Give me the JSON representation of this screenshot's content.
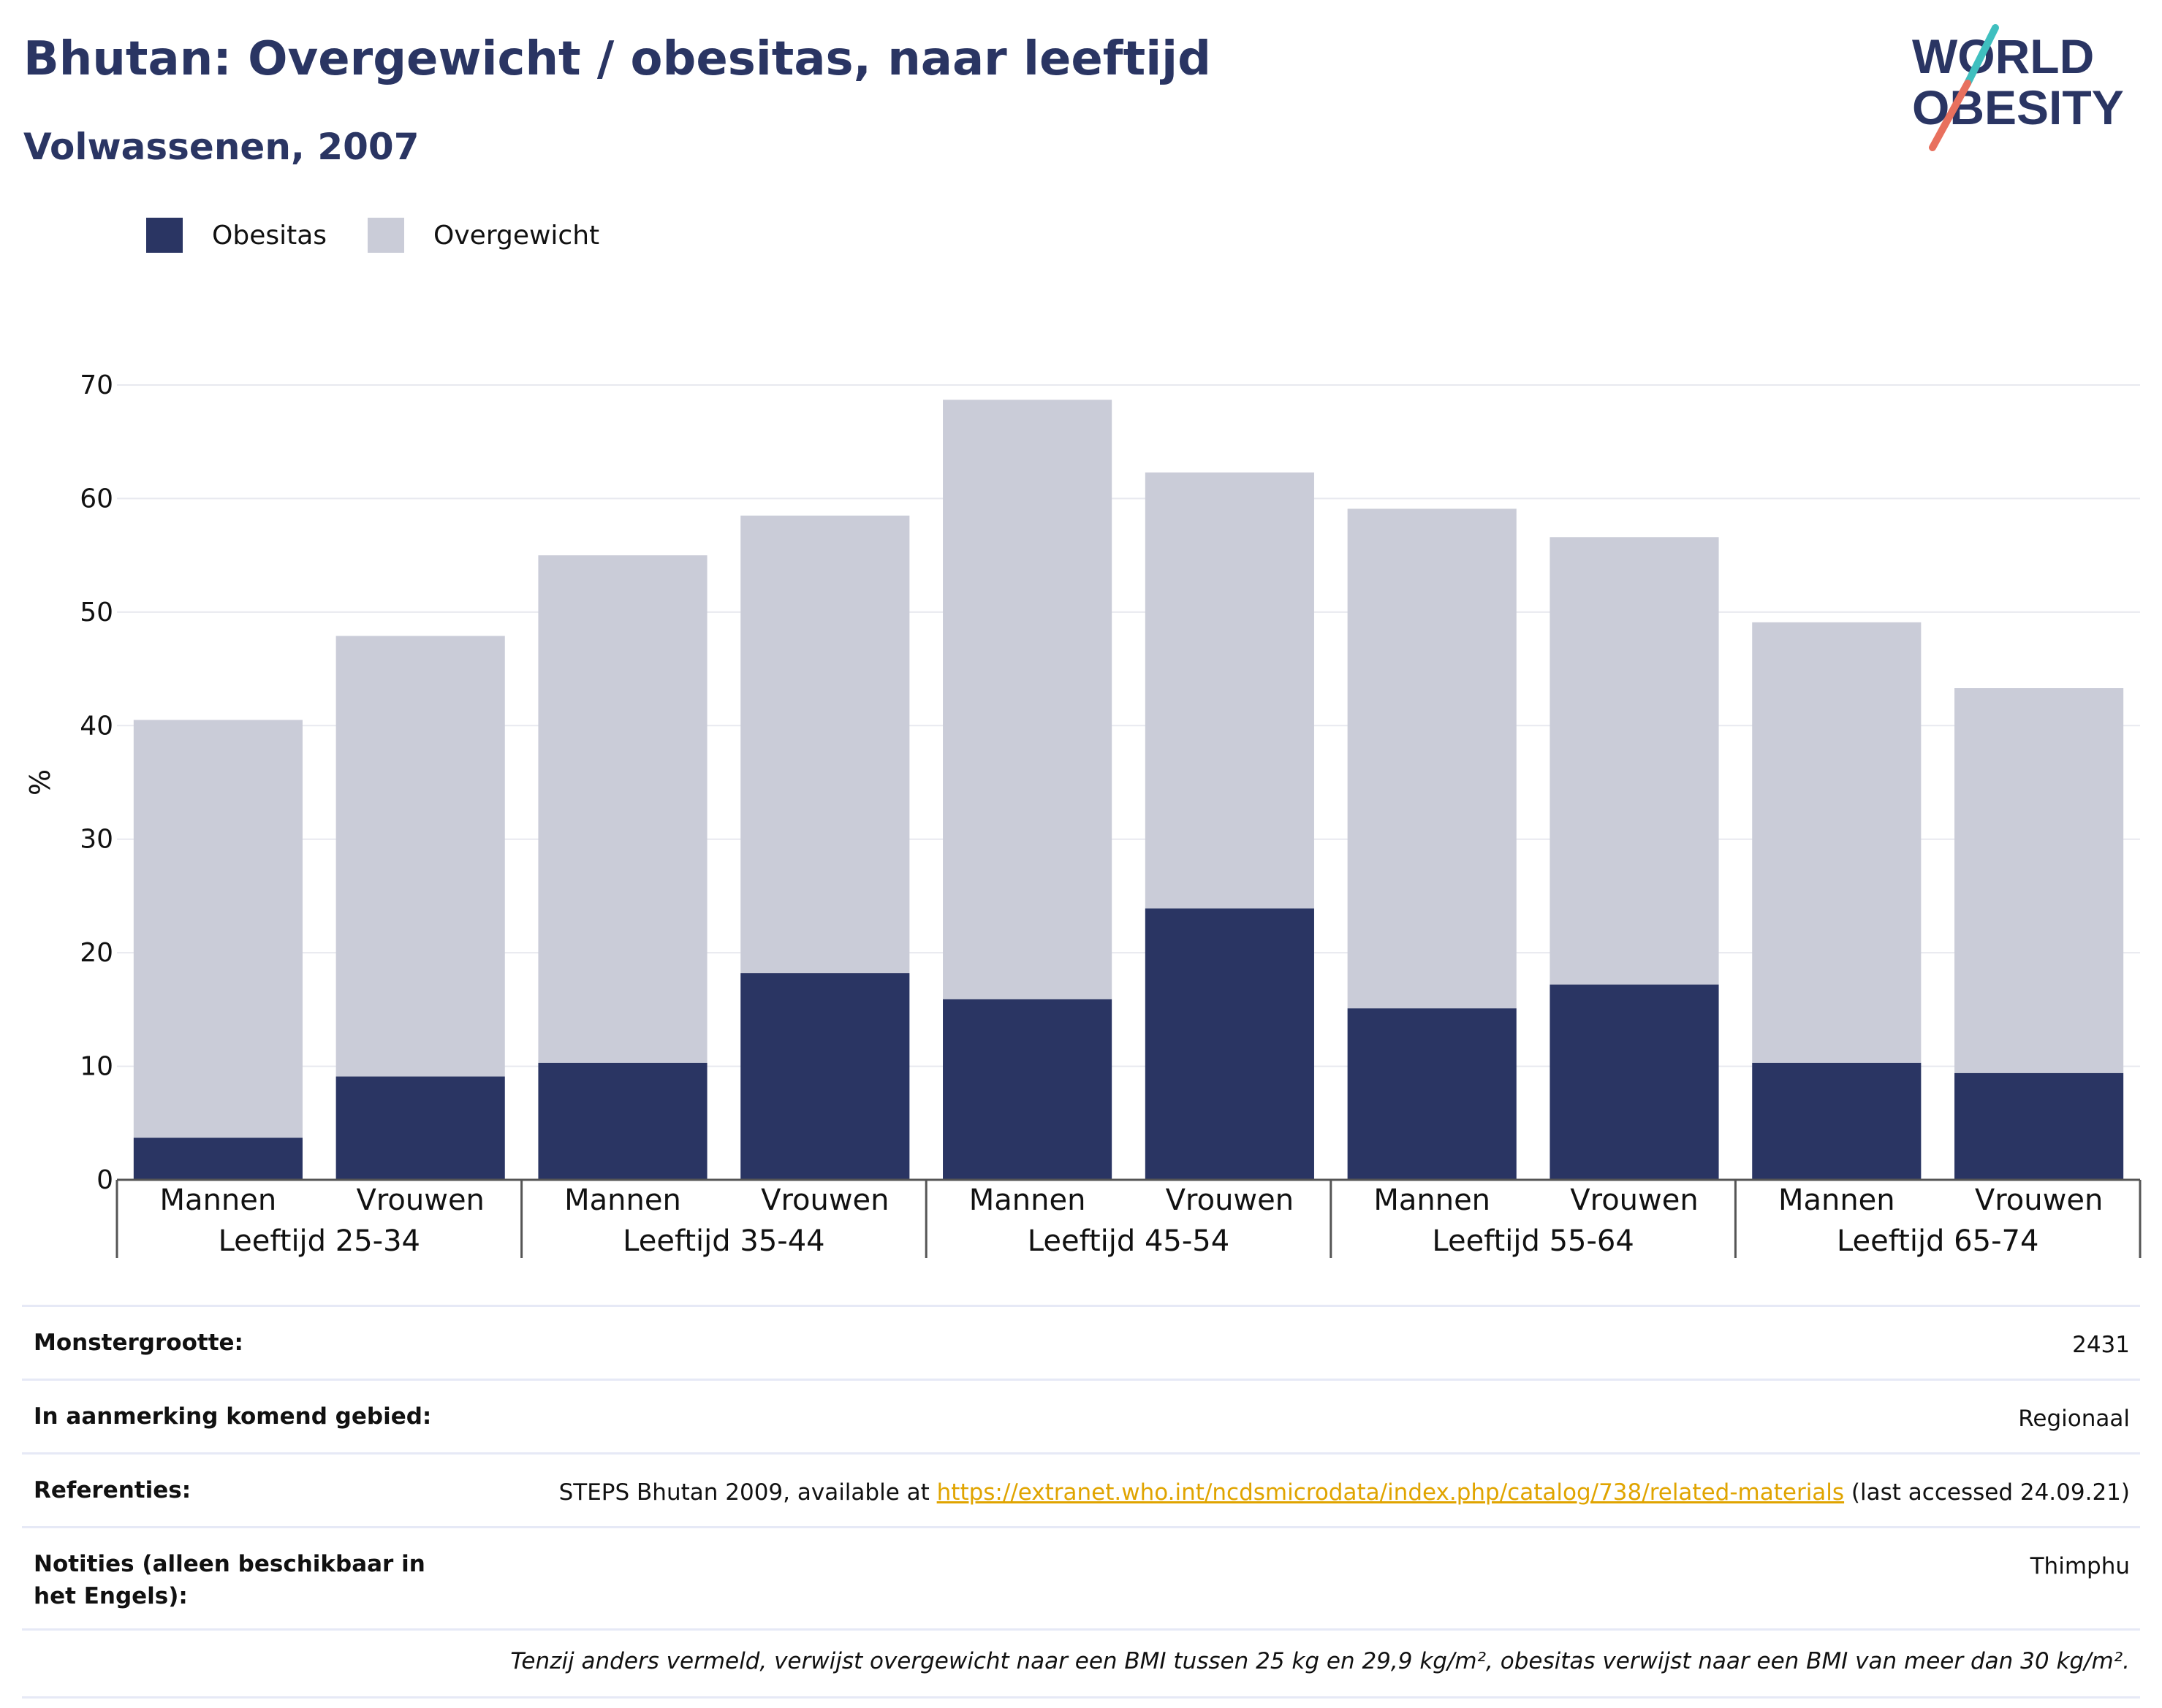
{
  "header": {
    "title": "Bhutan: Overgewicht / obesitas, naar leeftijd",
    "subtitle": "Volwassenen, 2007",
    "logo_line1": "WORLD",
    "logo_line2": "OBESITY"
  },
  "legend": {
    "obesity": "Obesitas",
    "overweight": "Overgewicht"
  },
  "colors": {
    "obesity": "#2a3563",
    "overweight": "#caccd8",
    "link": "#e0a400",
    "logo_teal": "#3fbfbf",
    "logo_coral": "#e8705e"
  },
  "chart_data": {
    "type": "bar",
    "stacked": true,
    "ylabel": "%",
    "ylim": [
      0,
      70
    ],
    "yticks": [
      0,
      10,
      20,
      30,
      40,
      50,
      60,
      70
    ],
    "grid": true,
    "legend_position": "top-left",
    "groups": [
      "Leeftijd 25-34",
      "Leeftijd 35-44",
      "Leeftijd 45-54",
      "Leeftijd 55-64",
      "Leeftijd 65-74"
    ],
    "categories": [
      "Mannen",
      "Vrouwen",
      "Mannen",
      "Vrouwen",
      "Mannen",
      "Vrouwen",
      "Mannen",
      "Vrouwen",
      "Mannen",
      "Vrouwen"
    ],
    "series": [
      {
        "name": "Obesitas",
        "values": [
          3.7,
          9.1,
          10.3,
          18.2,
          15.9,
          23.9,
          15.1,
          17.2,
          10.3,
          9.4
        ]
      },
      {
        "name": "Overgewicht",
        "values": [
          36.8,
          38.8,
          44.7,
          40.3,
          52.8,
          38.4,
          44.0,
          39.4,
          38.8,
          33.9
        ]
      }
    ]
  },
  "info": {
    "rows": [
      {
        "label": "Monstergrootte:",
        "value": "2431"
      },
      {
        "label": "In aanmerking komend gebied:",
        "value": "Regionaal"
      },
      {
        "label": "Referenties:",
        "value_pre": "STEPS Bhutan 2009, available at ",
        "link": "https://extranet.who.int/ncdsmicrodata/index.php/catalog/738/related-materials",
        "value_post": " (last accessed 24.09.21)"
      },
      {
        "label": "Notities (alleen beschikbaar in het Engels):",
        "value": "Thimphu"
      }
    ],
    "footnote": "Tenzij anders vermeld, verwijst overgewicht naar een BMI tussen 25 kg en 29,9 kg/m², obesitas verwijst naar een BMI van meer dan 30 kg/m²."
  }
}
